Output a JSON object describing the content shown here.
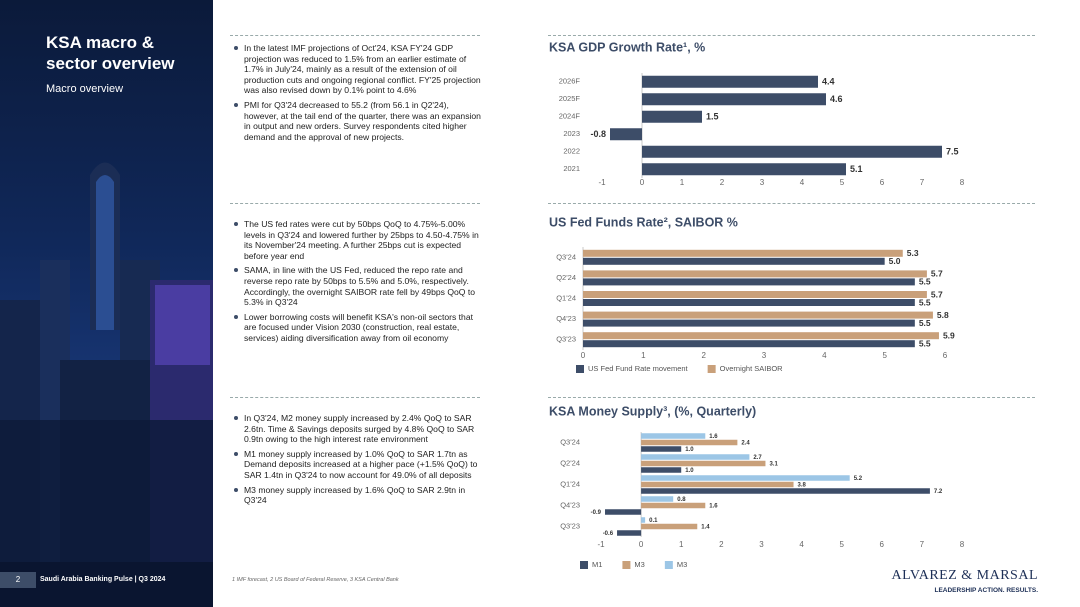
{
  "sidebar": {
    "title": "KSA macro & sector overview",
    "subtitle": "Macro overview"
  },
  "sections": [
    {
      "bullets": [
        "In the latest IMF projections of Oct'24, KSA FY'24 GDP projection was reduced to 1.5% from an earlier estimate of 1.7% in July'24, mainly as a result of the extension of oil production cuts and ongoing regional conflict. FY'25 projection was also revised down by 0.1% point to 4.6%",
        "PMI for Q3'24 decreased to 55.2 (from 56.1 in Q2'24), however, at the tail end of the quarter, there was an expansion in output and new orders. Survey respondents cited higher demand and the approval of new projects."
      ]
    },
    {
      "bullets": [
        "The US fed rates were cut by 50bps QoQ to 4.75%-5.00% levels in Q3'24 and lowered further by 25bps to 4.50-4.75% in its November'24 meeting. A further 25bps cut is expected before year end",
        "SAMA, in line with the US Fed, reduced the repo rate and reverse repo rate by 50bps to 5.5% and 5.0%, respectively. Accordingly, the overnight SAIBOR rate fell by 49bps QoQ to 5.3% in Q3'24",
        "Lower borrowing costs will benefit KSA's non-oil sectors that are focused under Vision 2030 (construction, real estate, services) aiding diversification away from oil economy"
      ]
    },
    {
      "bullets": [
        "In Q3'24, M2 money supply increased by 2.4% QoQ to SAR 2.6tn. Time & Savings deposits surged by 4.8% QoQ to SAR 0.9tn owing to the high interest rate environment",
        "M1 money supply increased by 1.0% QoQ to SAR 1.7tn as Demand deposits increased at a higher pace (+1.5% QoQ) to SAR 1.4tn in Q3'24 to now account for 49.0% of all deposits",
        "M3 money supply increased by 1.6% QoQ to SAR 2.9tn in Q3'24"
      ]
    }
  ],
  "chart_data": [
    {
      "type": "hbar",
      "title": "KSA GDP Growth Rate¹, %",
      "categories": [
        "2026F",
        "2025F",
        "2024F",
        "2023",
        "2022",
        "2021"
      ],
      "series": [
        {
          "name": null,
          "color": "#3d4d68",
          "values": [
            4.4,
            4.6,
            1.5,
            -0.8,
            7.5,
            5.1
          ]
        }
      ],
      "xlim": [
        -1,
        8
      ],
      "xticks": [
        -1,
        0,
        1,
        2,
        3,
        4,
        5,
        6,
        7,
        8
      ]
    },
    {
      "type": "hbar",
      "title": "US Fed Funds Rate², SAIBOR %",
      "categories": [
        "Q3'24",
        "Q2'24",
        "Q1'24",
        "Q4'23",
        "Q3'23"
      ],
      "series": [
        {
          "name": "US Fed Fund Rate movement",
          "color": "#3d4d68",
          "values": [
            5.0,
            5.5,
            5.5,
            5.5,
            5.5
          ],
          "value_labels": [
            "5.0",
            "5.5",
            "5.5",
            "5.5",
            "5.5"
          ]
        },
        {
          "name": "Overnight SAIBOR",
          "color": "#c9a07a",
          "values": [
            5.3,
            5.7,
            5.7,
            5.8,
            5.9
          ]
        }
      ],
      "xlim": [
        0,
        6
      ],
      "xticks": [
        0,
        1,
        2,
        3,
        4,
        5,
        6
      ],
      "legend": "bottom-left"
    },
    {
      "type": "hbar",
      "title": "KSA Money Supply³, (%, Quarterly)",
      "categories": [
        "Q3'24",
        "Q2'24",
        "Q1'24",
        "Q4'23",
        "Q3'23"
      ],
      "series": [
        {
          "name": "M1",
          "color": "#3d4d68",
          "values": [
            1.0,
            1.0,
            7.2,
            -0.9,
            -0.6
          ],
          "value_labels": [
            "1.0",
            "1.0",
            "7.2",
            "-0.9",
            "-0.6"
          ]
        },
        {
          "name": "M3",
          "color": "#c9a07a",
          "values": [
            2.4,
            3.1,
            3.8,
            1.6,
            1.4
          ]
        },
        {
          "name": "M3",
          "color": "#9cc6e6",
          "values": [
            1.6,
            2.7,
            5.2,
            0.8,
            0.1
          ]
        }
      ],
      "xlim": [
        -1,
        8
      ],
      "xticks": [
        -1,
        0,
        1,
        2,
        3,
        4,
        5,
        6,
        7,
        8
      ],
      "legend": "bottom-left"
    }
  ],
  "footer": {
    "page": "2",
    "report": "Saudi Arabia Banking Pulse | Q3 2024",
    "footnote": "1 IMF forecast, 2 US Board of Federal Reserve, 3 KSA Central Bank",
    "logo": "ALVAREZ & MARSAL",
    "tagline": "LEADERSHIP ACTION. RESULTS."
  }
}
